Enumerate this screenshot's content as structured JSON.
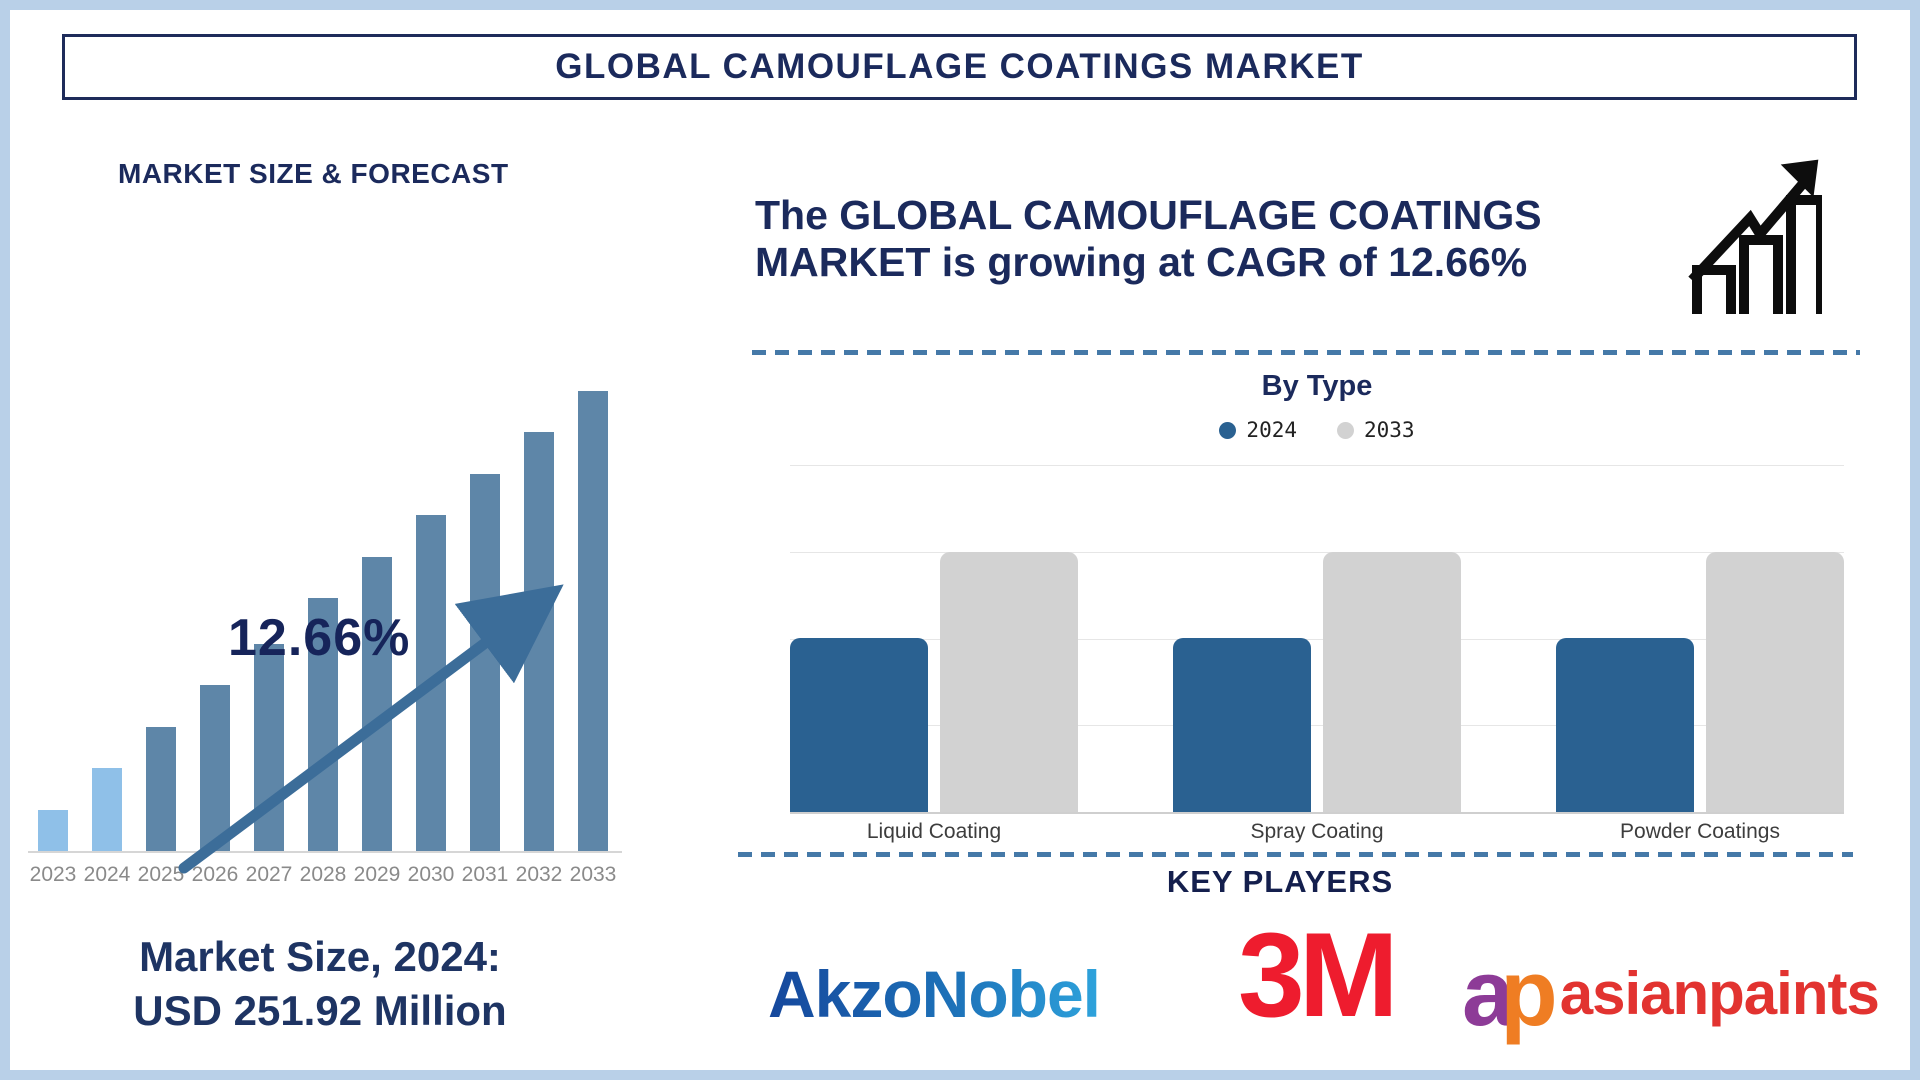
{
  "page": {
    "title": "GLOBAL CAMOUFLAGE COATINGS MARKET"
  },
  "left_panel": {
    "section_title": "MARKET SIZE & FORECAST",
    "cagr_label": "12.66%",
    "market_size_line1": "Market Size, 2024:",
    "market_size_line2": "USD 251.92 Million"
  },
  "right_panel": {
    "headline_line1": "The GLOBAL CAMOUFLAGE COATINGS",
    "headline_line2": "MARKET is growing at CAGR of 12.66%",
    "by_type": {
      "title": "By Type"
    },
    "key_players": {
      "title": "KEY PLAYERS",
      "players": [
        {
          "name": "AkzoNobel"
        },
        {
          "name": "3M"
        },
        {
          "mark_first": "a",
          "mark_second": "p",
          "name": "asianpaints"
        }
      ]
    }
  },
  "colors": {
    "navy": "#1b2a5c",
    "frame_border": "#b9d0e8",
    "forecast_bar": "#5e86a8",
    "forecast_bar_highlight": "#8fc0e8",
    "arrow": "#3c6d99",
    "series_2024": "#2a6191",
    "series_2033": "#d2d2d2",
    "dashed_divider": "#4579a8",
    "akzonobel_blue": "#1d71b8",
    "threeM_red": "#ee1c2e",
    "asianpaints_red": "#e23330"
  },
  "chart_data": [
    {
      "type": "bar",
      "title": "MARKET SIZE & FORECAST",
      "categories": [
        "2023",
        "2024",
        "2025",
        "2026",
        "2027",
        "2028",
        "2029",
        "2030",
        "2031",
        "2032",
        "2033"
      ],
      "relative_heights": [
        0.09,
        0.18,
        0.27,
        0.36,
        0.45,
        0.55,
        0.64,
        0.73,
        0.82,
        0.91,
        1.0
      ],
      "light_years": [
        "2023",
        "2024"
      ],
      "annotation": "12.66%",
      "known_point": "Market Size 2024 = USD 251.92 Million",
      "cagr_percent": 12.66,
      "ylabel": "",
      "xlabel": "",
      "axis_values_labeled": false,
      "style_note": "stylized ascending bars with upward trend arrow; 2023-2024 bars light blue, 2025-2033 steel blue"
    },
    {
      "type": "grouped-bar",
      "title": "By Type",
      "categories": [
        "Liquid Coating",
        "Spray Coating",
        "Powder Coatings"
      ],
      "series": [
        {
          "name": "2024",
          "color": "#2a6191",
          "fraction_of_plot": [
            0.5,
            0.5,
            0.5
          ]
        },
        {
          "name": "2033",
          "color": "#d2d2d2",
          "fraction_of_plot": [
            0.75,
            0.75,
            0.75
          ]
        }
      ],
      "legend_position": "top",
      "grid": true,
      "axis_values_labeled": false
    }
  ]
}
